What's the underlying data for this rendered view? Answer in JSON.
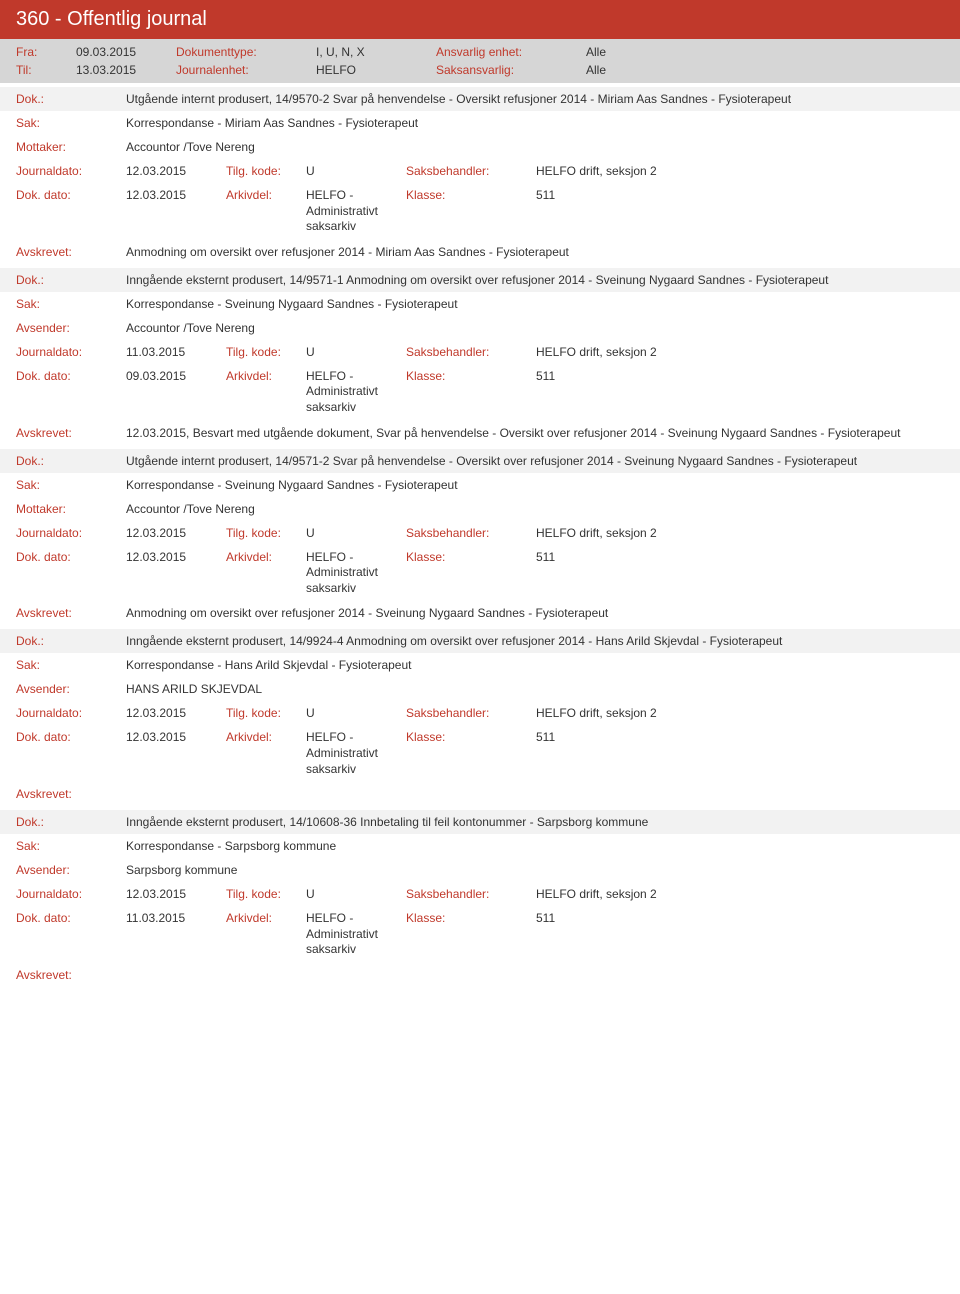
{
  "colors": {
    "header_bg": "#c0392b",
    "meta_bg": "#d6d6d6",
    "shade_bg": "#f2f2f2",
    "label_color": "#c0392b",
    "text_color": "#333333"
  },
  "header": {
    "title": "360 - Offentlig journal"
  },
  "meta": {
    "fra_label": "Fra:",
    "fra_value": "09.03.2015",
    "til_label": "Til:",
    "til_value": "13.03.2015",
    "doktype_label": "Dokumenttype:",
    "doktype_value": "I, U, N, X",
    "journalenhet_label": "Journalenhet:",
    "journalenhet_value": "HELFO",
    "ansvarlig_label": "Ansvarlig enhet:",
    "ansvarlig_value": "Alle",
    "saksansvarlig_label": "Saksansvarlig:",
    "saksansvarlig_value": "Alle"
  },
  "labels": {
    "dok": "Dok.:",
    "sak": "Sak:",
    "mottaker": "Mottaker:",
    "avsender": "Avsender:",
    "journaldato": "Journaldato:",
    "dokdato": "Dok. dato:",
    "tilgkode": "Tilg. kode:",
    "arkivdel": "Arkivdel:",
    "saksbehandler": "Saksbehandler:",
    "klasse": "Klasse:",
    "avskrevet": "Avskrevet:"
  },
  "common": {
    "tilgkode_val": "U",
    "arkivdel_val": "HELFO - Administrativt saksarkiv",
    "saksbehandler_val": "HELFO drift, seksjon 2",
    "klasse_val": "511"
  },
  "entries": [
    {
      "dok": "Utgående internt produsert, 14/9570-2 Svar på henvendelse - Oversikt refusjoner 2014 - Miriam Aas Sandnes - Fysioterapeut",
      "sak": "Korrespondanse - Miriam Aas Sandnes - Fysioterapeut",
      "party_label": "Mottaker:",
      "party_value": "Accountor /Tove Nereng",
      "journaldato": "12.03.2015",
      "dokdato": "12.03.2015",
      "avskrevet": "Anmodning om oversikt over refusjoner 2014 - Miriam Aas Sandnes - Fysioterapeut"
    },
    {
      "dok": "Inngående eksternt produsert, 14/9571-1 Anmodning om oversikt over refusjoner 2014 - Sveinung Nygaard Sandnes - Fysioterapeut",
      "sak": "Korrespondanse - Sveinung Nygaard Sandnes - Fysioterapeut",
      "party_label": "Avsender:",
      "party_value": "Accountor /Tove Nereng",
      "journaldato": "11.03.2015",
      "dokdato": "09.03.2015",
      "avskrevet": "12.03.2015, Besvart med utgående dokument, Svar på henvendelse - Oversikt over refusjoner 2014 - Sveinung Nygaard Sandnes - Fysioterapeut"
    },
    {
      "dok": "Utgående internt produsert, 14/9571-2 Svar på henvendelse - Oversikt over refusjoner 2014 - Sveinung Nygaard Sandnes - Fysioterapeut",
      "sak": "Korrespondanse - Sveinung Nygaard Sandnes - Fysioterapeut",
      "party_label": "Mottaker:",
      "party_value": "Accountor /Tove Nereng",
      "journaldato": "12.03.2015",
      "dokdato": "12.03.2015",
      "avskrevet": "Anmodning om oversikt over refusjoner 2014 - Sveinung Nygaard Sandnes - Fysioterapeut"
    },
    {
      "dok": "Inngående eksternt produsert, 14/9924-4 Anmodning om oversikt over refusjoner 2014 - Hans Arild Skjevdal - Fysioterapeut",
      "sak": "Korrespondanse - Hans Arild Skjevdal - Fysioterapeut",
      "party_label": "Avsender:",
      "party_value": "HANS ARILD SKJEVDAL",
      "journaldato": "12.03.2015",
      "dokdato": "12.03.2015",
      "avskrevet": ""
    },
    {
      "dok": "Inngående eksternt produsert, 14/10608-36 Innbetaling til feil kontonummer - Sarpsborg kommune",
      "sak": "Korrespondanse - Sarpsborg kommune",
      "party_label": "Avsender:",
      "party_value": "Sarpsborg kommune",
      "journaldato": "12.03.2015",
      "dokdato": "11.03.2015",
      "avskrevet": ""
    }
  ]
}
